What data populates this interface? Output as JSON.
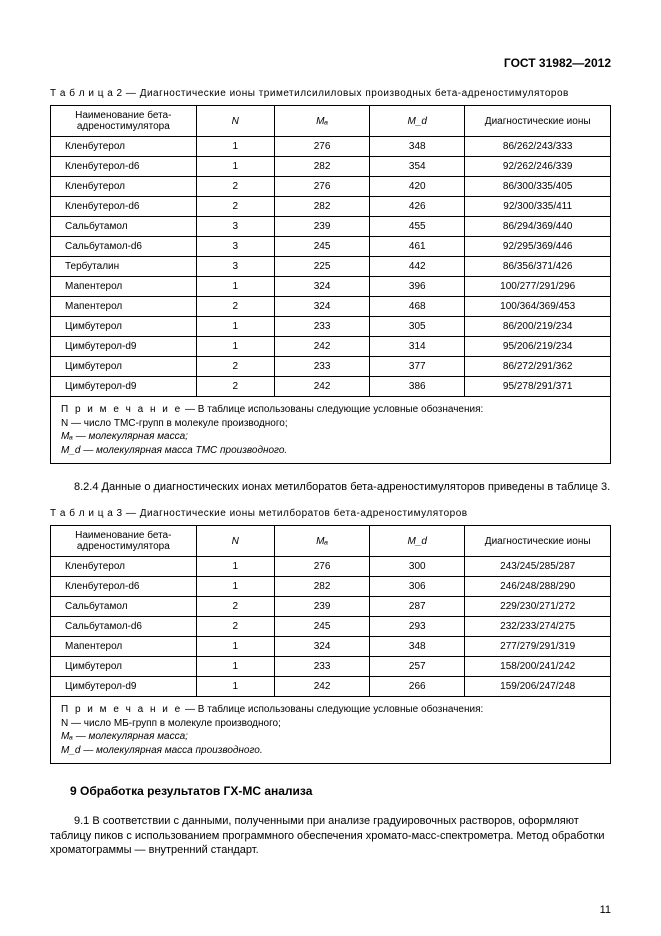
{
  "doc_header": "ГОСТ 31982—2012",
  "table2": {
    "caption_label": "Т а б л и ц а  2 —",
    "caption_text": "Диагностические ионы триметилсилиловых производных бета-адреностимуляторов",
    "headers": {
      "name": "Наименование бета-адреностимулятора",
      "n": "N",
      "ma": "Mₐ",
      "md": "M_d",
      "ions": "Диагностические ионы"
    },
    "rows": [
      {
        "name": "Кленбутерол",
        "n": "1",
        "ma": "276",
        "md": "348",
        "ions": "86/262/243/333"
      },
      {
        "name": "Кленбутерол-d6",
        "n": "1",
        "ma": "282",
        "md": "354",
        "ions": "92/262/246/339"
      },
      {
        "name": "Кленбутерол",
        "n": "2",
        "ma": "276",
        "md": "420",
        "ions": "86/300/335/405"
      },
      {
        "name": "Кленбутерол-d6",
        "n": "2",
        "ma": "282",
        "md": "426",
        "ions": "92/300/335/411"
      },
      {
        "name": "Сальбутамол",
        "n": "3",
        "ma": "239",
        "md": "455",
        "ions": "86/294/369/440"
      },
      {
        "name": "Сальбутамол-d6",
        "n": "3",
        "ma": "245",
        "md": "461",
        "ions": "92/295/369/446"
      },
      {
        "name": "Тербуталин",
        "n": "3",
        "ma": "225",
        "md": "442",
        "ions": "86/356/371/426"
      },
      {
        "name": "Мапентерол",
        "n": "1",
        "ma": "324",
        "md": "396",
        "ions": "100/277/291/296"
      },
      {
        "name": "Мапентерол",
        "n": "2",
        "ma": "324",
        "md": "468",
        "ions": "100/364/369/453"
      },
      {
        "name": "Цимбутерол",
        "n": "1",
        "ma": "233",
        "md": "305",
        "ions": "86/200/219/234"
      },
      {
        "name": "Цимбутерол-d9",
        "n": "1",
        "ma": "242",
        "md": "314",
        "ions": "95/206/219/234"
      },
      {
        "name": "Цимбутерол",
        "n": "2",
        "ma": "233",
        "md": "377",
        "ions": "86/272/291/362"
      },
      {
        "name": "Цимбутерол-d9",
        "n": "2",
        "ma": "242",
        "md": "386",
        "ions": "95/278/291/371"
      }
    ],
    "note_label": "П р и м е ч а н и е",
    "note_lines": [
      "— В таблице использованы следующие условные обозначения:",
      "N — число ТМС-групп в молекуле производного;",
      "Mₐ — молекулярная масса;",
      "M_d — молекулярная масса ТМС производного."
    ]
  },
  "para824": "8.2.4 Данные о диагностических ионах метилборатов бета-адреностимуляторов приведены в таблице 3.",
  "table3": {
    "caption_label": "Т а б л и ц а  3 —",
    "caption_text": "Диагностические ионы метилборатов бета-адреностимуляторов",
    "headers": {
      "name": "Наименование бета-адреностимулятора",
      "n": "N",
      "ma": "Mₐ",
      "md": "M_d",
      "ions": "Диагностические ионы"
    },
    "rows": [
      {
        "name": "Кленбутерол",
        "n": "1",
        "ma": "276",
        "md": "300",
        "ions": "243/245/285/287"
      },
      {
        "name": "Кленбутерол-d6",
        "n": "1",
        "ma": "282",
        "md": "306",
        "ions": "246/248/288/290"
      },
      {
        "name": "Сальбутамол",
        "n": "2",
        "ma": "239",
        "md": "287",
        "ions": "229/230/271/272"
      },
      {
        "name": "Сальбутамол-d6",
        "n": "2",
        "ma": "245",
        "md": "293",
        "ions": "232/233/274/275"
      },
      {
        "name": "Мапентерол",
        "n": "1",
        "ma": "324",
        "md": "348",
        "ions": "277/279/291/319"
      },
      {
        "name": "Цимбутерол",
        "n": "1",
        "ma": "233",
        "md": "257",
        "ions": "158/200/241/242"
      },
      {
        "name": "Цимбутерол-d9",
        "n": "1",
        "ma": "242",
        "md": "266",
        "ions": "159/206/247/248"
      }
    ],
    "note_label": "П р и м е ч а н и е",
    "note_lines": [
      "— В таблице использованы следующие условные обозначения:",
      "N — число МБ-групп в молекуле производного;",
      "Mₐ — молекулярная масса;",
      "M_d — молекулярная масса производного."
    ]
  },
  "section9_head": "9  Обработка результатов ГХ-МС анализа",
  "para91": "9.1  В соответствии с данными, полученными при анализе градуировочных растворов, оформляют таблицу пиков с использованием программного обеспечения хромато-масс-спектрометра. Метод обработки хроматограммы — внутренний стандарт.",
  "page_number": "11"
}
